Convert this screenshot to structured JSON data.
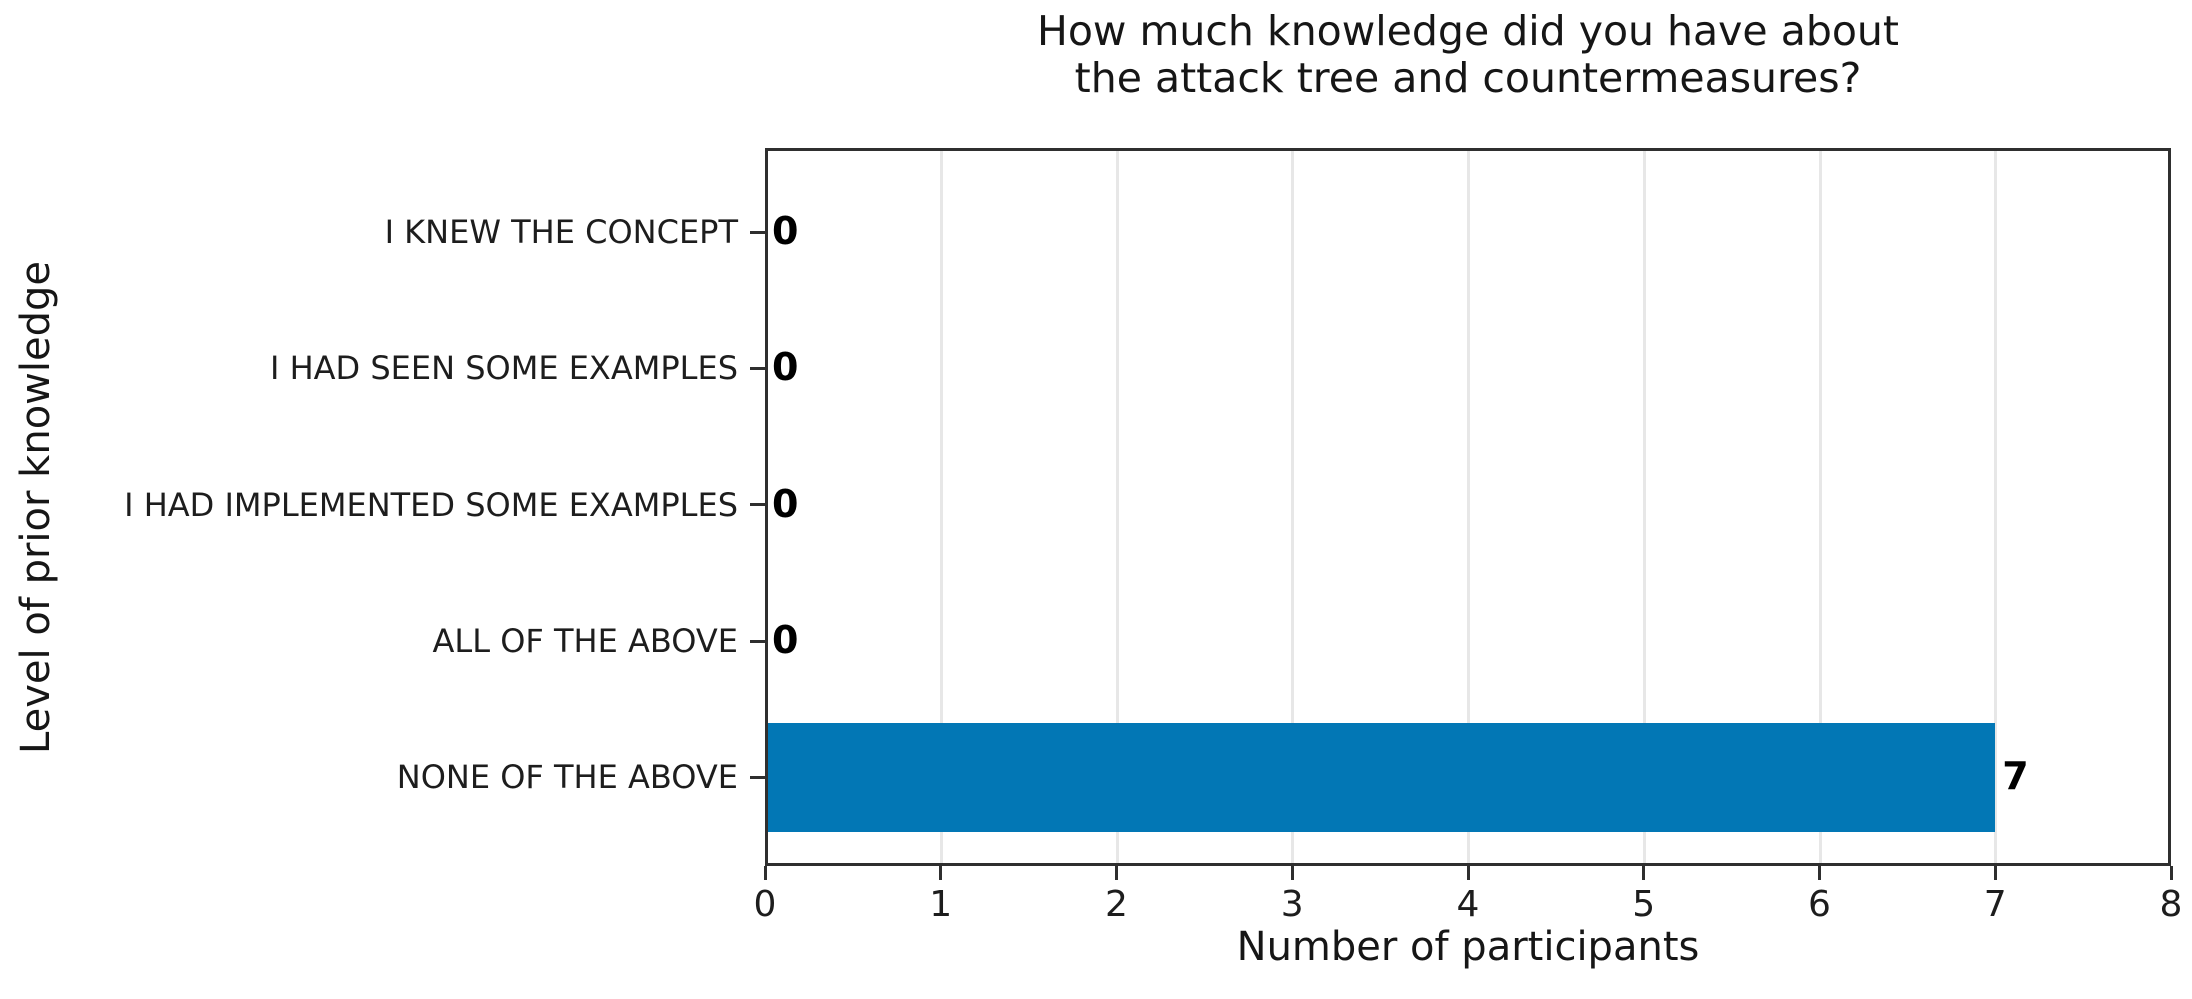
{
  "chart_data": {
    "type": "bar",
    "orientation": "horizontal",
    "title": "How much knowledge did you have about the attack tree and countermeasures?",
    "title_lines": [
      "How much knowledge did you have about",
      "the attack tree and countermeasures?"
    ],
    "categories": [
      "I KNEW THE CONCEPT",
      "I HAD SEEN SOME EXAMPLES",
      "I HAD IMPLEMENTED SOME EXAMPLES",
      "ALL OF THE ABOVE",
      "NONE OF THE ABOVE"
    ],
    "values": [
      0,
      0,
      0,
      0,
      7
    ],
    "value_labels": [
      "0",
      "0",
      "0",
      "0",
      "7"
    ],
    "xlabel": "Number of participants",
    "ylabel": "Level of prior knowledge",
    "xlim": [
      0,
      8
    ],
    "xticks": [
      0,
      1,
      2,
      3,
      4,
      5,
      6,
      7,
      8
    ],
    "grid": true,
    "legend": null,
    "colors": {
      "bar": "#0277b5",
      "spine": "#2f2f2f",
      "grid": "#e7e7e7",
      "text": "#1a1a1a"
    }
  }
}
